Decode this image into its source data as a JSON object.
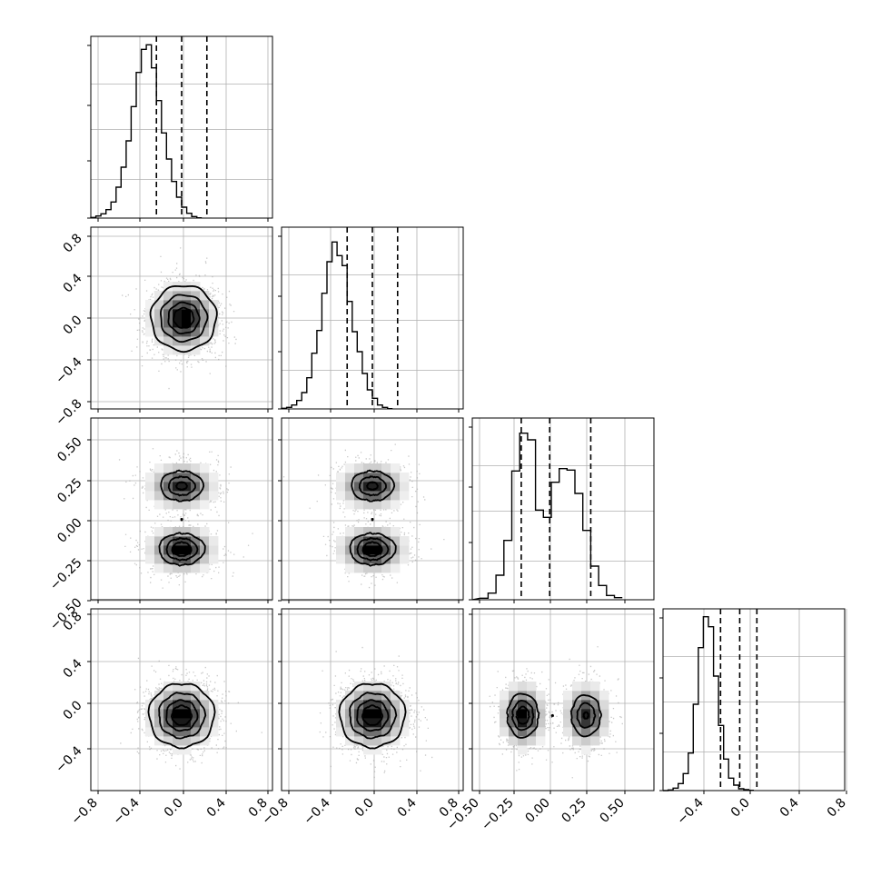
{
  "chart_data": {
    "type": "corner",
    "variables": 4,
    "grid": true,
    "colors": {
      "line": "#000000",
      "grid": "#b0b0b0",
      "points": "#9a9a9a",
      "density": "#000000"
    },
    "xticks": [
      [
        "−0.8",
        "−0.4",
        "0.0",
        "0.4",
        "0.8"
      ],
      [
        "−0.8",
        "−0.4",
        "0.0",
        "0.4",
        "0.8"
      ],
      [
        "−0.50",
        "−0.25",
        "0.00",
        "0.25",
        "0.50"
      ],
      [
        "−0.4",
        "0.0",
        "0.4",
        "0.8"
      ]
    ],
    "yticks": [
      null,
      [
        "0.8",
        "0.4",
        "0.0",
        "−0.4",
        "−0.8"
      ],
      [
        "0.50",
        "0.25",
        "0.00",
        "−0.25",
        "−0.50"
      ],
      [
        "0.8",
        "0.4",
        "0.0",
        "−0.4"
      ]
    ],
    "histograms": [
      {
        "bins": [
          -0.9,
          0.05
        ],
        "counts": [
          0.2,
          0.7,
          1.4,
          2.8,
          5.3,
          10.2,
          16.8,
          25.5,
          36.8,
          48.1,
          55.7,
          57.2,
          49.6,
          38.8,
          28.1,
          19.5,
          12.1,
          6.9,
          3.6,
          1.6,
          0.5,
          0.1
        ],
        "quantiles": [
          -0.25,
          0.0,
          0.25
        ],
        "xlim": [
          -0.9,
          0.9
        ]
      },
      {
        "bins": [
          -0.9,
          0.05
        ],
        "counts": [
          0.2,
          0.5,
          1.3,
          2.8,
          5.4,
          10.3,
          18.4,
          25.9,
          38.2,
          48.6,
          55.1,
          50.6,
          47.3,
          35.5,
          25.5,
          18.9,
          11.7,
          6.3,
          3.5,
          1.3,
          0.5,
          0.1
        ],
        "quantiles": [
          -0.25,
          0.0,
          0.25
        ],
        "xlim": [
          -0.9,
          0.9
        ]
      },
      {
        "bins": [
          -0.45,
          0.05
        ],
        "counts": [
          0.5,
          2.2,
          8.1,
          19.6,
          42.5,
          55.0,
          52.8,
          29.6,
          27.2,
          38.8,
          43.3,
          42.8,
          35.1,
          22.9,
          11.1,
          4.7,
          1.4,
          0.7
        ],
        "quantiles": [
          -0.19,
          -0.01,
          0.25
        ],
        "xlim": [
          -0.5,
          0.65
        ]
      },
      {
        "bins": [
          -0.9,
          0.05
        ],
        "counts": [
          0.0,
          0.2,
          0.8,
          2.3,
          5.6,
          12.4,
          28.5,
          47.2,
          57.4,
          54.1,
          37.8,
          21.5,
          10.4,
          4.1,
          1.8,
          0.6,
          0.3,
          0.1
        ],
        "quantiles": [
          -0.33,
          -0.14,
          0.03
        ],
        "xlim": [
          -0.9,
          0.9
        ]
      }
    ],
    "pairs": [
      {
        "row": 1,
        "col": 0,
        "xlim": [
          -0.9,
          0.9
        ],
        "ylim": [
          -0.9,
          0.9
        ],
        "modes": [
          {
            "x": 0.02,
            "y": 0.0,
            "sx": 0.16,
            "sy": 0.16,
            "w": 1.0
          }
        ]
      },
      {
        "row": 2,
        "col": 0,
        "xlim": [
          -0.9,
          0.9
        ],
        "ylim": [
          -0.5,
          0.65
        ],
        "modes": [
          {
            "x": 0.0,
            "y": 0.22,
            "sx": 0.16,
            "sy": 0.07,
            "w": 0.47
          },
          {
            "x": 0.0,
            "y": -0.18,
            "sx": 0.16,
            "sy": 0.07,
            "w": 0.53
          }
        ]
      },
      {
        "row": 2,
        "col": 1,
        "xlim": [
          -0.9,
          0.9
        ],
        "ylim": [
          -0.5,
          0.65
        ],
        "modes": [
          {
            "x": 0.0,
            "y": 0.22,
            "sx": 0.16,
            "sy": 0.07,
            "w": 0.47
          },
          {
            "x": 0.0,
            "y": -0.18,
            "sx": 0.16,
            "sy": 0.07,
            "w": 0.53
          }
        ]
      },
      {
        "row": 3,
        "col": 0,
        "xlim": [
          -0.9,
          0.9
        ],
        "ylim": [
          -0.75,
          0.75
        ],
        "modes": [
          {
            "x": 0.0,
            "y": -0.13,
            "sx": 0.16,
            "sy": 0.13,
            "w": 1.0
          }
        ]
      },
      {
        "row": 3,
        "col": 1,
        "xlim": [
          -0.9,
          0.9
        ],
        "ylim": [
          -0.75,
          0.75
        ],
        "modes": [
          {
            "x": 0.0,
            "y": -0.13,
            "sx": 0.16,
            "sy": 0.13,
            "w": 1.0
          }
        ]
      },
      {
        "row": 3,
        "col": 2,
        "xlim": [
          -0.5,
          0.65
        ],
        "ylim": [
          -0.75,
          0.75
        ],
        "modes": [
          {
            "x": -0.18,
            "y": -0.13,
            "sx": 0.07,
            "sy": 0.13,
            "w": 0.53
          },
          {
            "x": 0.22,
            "y": -0.13,
            "sx": 0.07,
            "sy": 0.13,
            "w": 0.47
          }
        ]
      }
    ]
  }
}
